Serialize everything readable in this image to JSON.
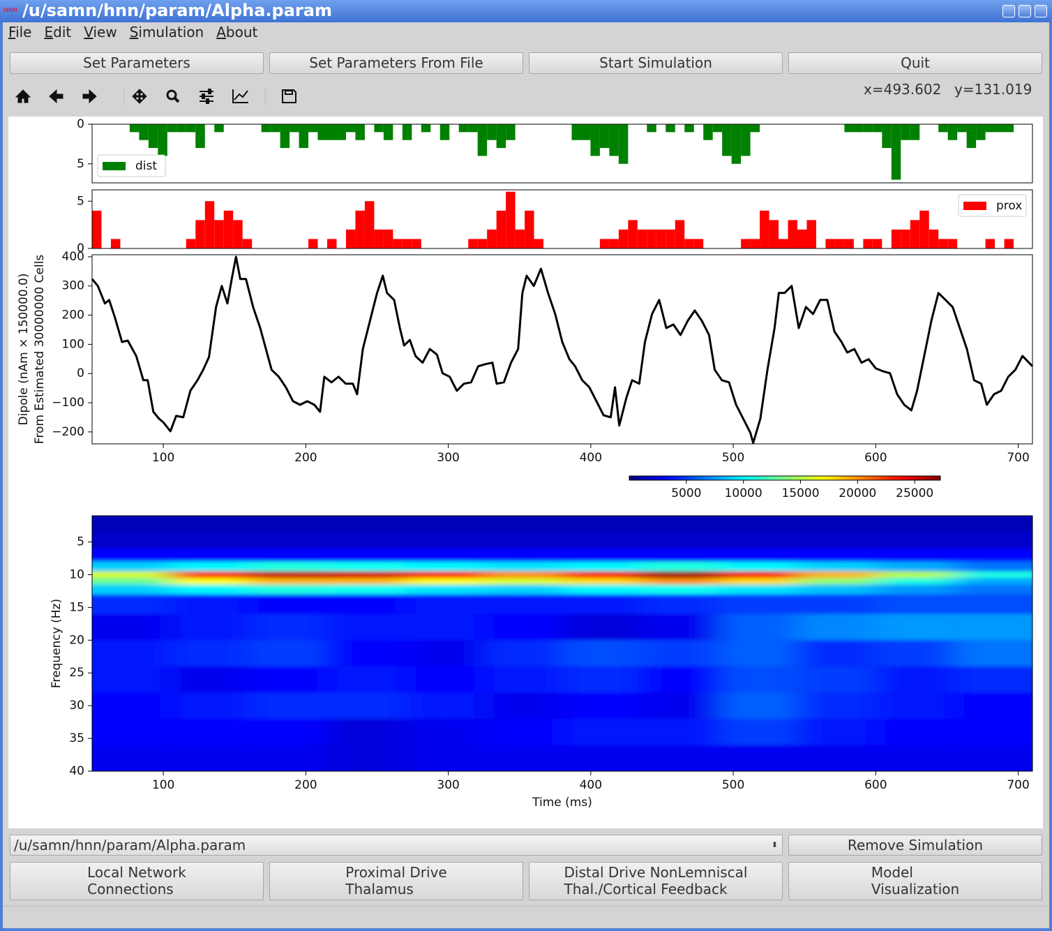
{
  "window": {
    "icon": "HNN",
    "title": "/u/samn/hnn/param/Alpha.param"
  },
  "menu": [
    "File",
    "Edit",
    "View",
    "Simulation",
    "About"
  ],
  "buttons": [
    "Set Parameters",
    "Set Parameters From File",
    "Start Simulation",
    "Quit"
  ],
  "toolbar": {
    "x_coord": "x=493.602",
    "y_coord": "y=131.019"
  },
  "bottom": {
    "file": "/u/samn/hnn/param/Alpha.param",
    "remove": "Remove Simulation",
    "dialogs": [
      [
        "Local Network",
        "Connections"
      ],
      [
        "Proximal Drive",
        "Thalamus"
      ],
      [
        "Distal Drive NonLemniscal",
        "Thal./Cortical Feedback"
      ],
      [
        "Model",
        "Visualization"
      ]
    ]
  },
  "chart_data": [
    {
      "type": "histogram",
      "legend": "lower left",
      "bins": [
        50,
        56.6,
        63.2,
        69.8,
        76.4,
        83,
        89.6,
        96.2,
        102.8,
        109.4,
        116,
        122.6,
        129.2,
        135.8,
        142.4,
        149,
        155.6,
        162.2,
        168.8,
        175.4,
        182,
        188.6,
        195.2,
        201.8,
        208.4,
        215,
        221.6,
        228.2,
        234.8,
        241.4,
        248,
        254.6,
        261.2,
        267.8,
        274.4,
        281,
        287.6,
        294.2,
        300.8,
        307.4,
        314,
        320.6,
        327.2,
        333.8,
        340.4,
        347,
        353.6,
        360.2,
        366.8,
        373.4,
        380,
        386.6,
        393.2,
        399.8,
        406.4,
        413,
        419.6,
        426.2,
        432.8,
        439.4,
        446,
        452.6,
        459.2,
        465.8,
        472.4,
        479,
        485.6,
        492.2,
        498.8,
        505.4,
        512,
        518.6,
        525.2,
        531.8,
        538.4,
        545,
        551.6,
        558.2,
        564.8,
        571.4,
        578,
        584.6,
        591.2,
        597.8,
        604.4,
        611,
        617.6,
        624.2,
        630.8,
        637.4,
        644,
        650.6,
        657.2,
        663.8,
        670.4,
        677,
        683.6,
        690.2,
        696.8,
        703.4,
        710
      ],
      "series": [
        {
          "name": "dist",
          "color": "#008000",
          "values": [
            0,
            0,
            0,
            0,
            1,
            2,
            3,
            4,
            1,
            1,
            1,
            3,
            0,
            1,
            0,
            0,
            0,
            0,
            1,
            1,
            3,
            1,
            3,
            1,
            2,
            2,
            2,
            1,
            2,
            0,
            1,
            2,
            0,
            2,
            0,
            1,
            0,
            2,
            0,
            1,
            1,
            4,
            2,
            3,
            2,
            0,
            0,
            0,
            0,
            0,
            0,
            2,
            2,
            4,
            3,
            4,
            5,
            0,
            0,
            1,
            0,
            1,
            0,
            1,
            0,
            2,
            1,
            4,
            5,
            4,
            1,
            0,
            0,
            0,
            0,
            0,
            0,
            0,
            0,
            0,
            1,
            1,
            1,
            1,
            3,
            7,
            2,
            2,
            0,
            0,
            1,
            2,
            1,
            3,
            2,
            1,
            1,
            1,
            0,
            0
          ]
        }
      ],
      "xlim": [
        50,
        710
      ],
      "ylim": [
        7.4,
        0
      ],
      "yticks": [
        0,
        5
      ]
    },
    {
      "type": "histogram",
      "legend": "upper right",
      "bins": [
        50,
        56.6,
        63.2,
        69.8,
        76.4,
        83,
        89.6,
        96.2,
        102.8,
        109.4,
        116,
        122.6,
        129.2,
        135.8,
        142.4,
        149,
        155.6,
        162.2,
        168.8,
        175.4,
        182,
        188.6,
        195.2,
        201.8,
        208.4,
        215,
        221.6,
        228.2,
        234.8,
        241.4,
        248,
        254.6,
        261.2,
        267.8,
        274.4,
        281,
        287.6,
        294.2,
        300.8,
        307.4,
        314,
        320.6,
        327.2,
        333.8,
        340.4,
        347,
        353.6,
        360.2,
        366.8,
        373.4,
        380,
        386.6,
        393.2,
        399.8,
        406.4,
        413,
        419.6,
        426.2,
        432.8,
        439.4,
        446,
        452.6,
        459.2,
        465.8,
        472.4,
        479,
        485.6,
        492.2,
        498.8,
        505.4,
        512,
        518.6,
        525.2,
        531.8,
        538.4,
        545,
        551.6,
        558.2,
        564.8,
        571.4,
        578,
        584.6,
        591.2,
        597.8,
        604.4,
        611,
        617.6,
        624.2,
        630.8,
        637.4,
        644,
        650.6,
        657.2,
        663.8,
        670.4,
        677,
        683.6,
        690.2,
        696.8,
        703.4,
        710
      ],
      "series": [
        {
          "name": "prox",
          "color": "#ff0000",
          "values": [
            4,
            0,
            1,
            0,
            0,
            0,
            0,
            0,
            0,
            0,
            1,
            3,
            5,
            3,
            4,
            3,
            1,
            0,
            0,
            0,
            0,
            0,
            0,
            1,
            0,
            1,
            0,
            2,
            4,
            5,
            2,
            2,
            1,
            1,
            1,
            0,
            0,
            0,
            0,
            0,
            1,
            1,
            2,
            4,
            6,
            2,
            4,
            1,
            0,
            0,
            0,
            0,
            0,
            0,
            1,
            1,
            2,
            3,
            2,
            2,
            2,
            2,
            3,
            1,
            1,
            0,
            0,
            0,
            0,
            1,
            1,
            4,
            3,
            1,
            3,
            2,
            3,
            0,
            1,
            1,
            1,
            0,
            1,
            1,
            0,
            2,
            2,
            3,
            4,
            2,
            1,
            1,
            0,
            0,
            0,
            1,
            0,
            1,
            0,
            0
          ]
        }
      ],
      "xlim": [
        50,
        710
      ],
      "ylim": [
        0,
        6.2
      ],
      "yticks": [
        0,
        5
      ]
    },
    {
      "type": "line",
      "ylabel": [
        "Dipole (nAm × 150000.0)",
        "From Estimated 30000000 Cells"
      ],
      "x": [
        50,
        54,
        59,
        62,
        66,
        71,
        75,
        81,
        86,
        89,
        93,
        97,
        100,
        105,
        109,
        114,
        119,
        124,
        128,
        132,
        137,
        141,
        145,
        148,
        151,
        154,
        158,
        163,
        168,
        172,
        176,
        181,
        186,
        191,
        196,
        201,
        206,
        210,
        213,
        218,
        223,
        228,
        233,
        236,
        240,
        245,
        250,
        254,
        257,
        262,
        266,
        269,
        273,
        277,
        282,
        287,
        292,
        296,
        301,
        306,
        311,
        316,
        321,
        326,
        331,
        334,
        339,
        344,
        349,
        352,
        355,
        360,
        365,
        370,
        375,
        380,
        385,
        389,
        394,
        399,
        404,
        409,
        414,
        417,
        420,
        425,
        429,
        434,
        438,
        443,
        448,
        453,
        458,
        463,
        468,
        473,
        478,
        483,
        487,
        492,
        497,
        502,
        507,
        512,
        514,
        519,
        524,
        529,
        532,
        536,
        541,
        546,
        551,
        556,
        561,
        566,
        571,
        576,
        580,
        585,
        590,
        595,
        600,
        605,
        610,
        615,
        620,
        625,
        629,
        634,
        639,
        644,
        649,
        654,
        659,
        664,
        669,
        674,
        678,
        683,
        688,
        693,
        698,
        703,
        710
      ],
      "series": [
        {
          "color": "#000000",
          "values": [
            324,
            300,
            240,
            252,
            192,
            108,
            113,
            60,
            -23,
            -23,
            -131,
            -155,
            -167,
            -198,
            -145,
            -150,
            -59,
            -23,
            13,
            56,
            228,
            300,
            240,
            324,
            400,
            324,
            324,
            228,
            156,
            84,
            13,
            -11,
            -47,
            -95,
            -107,
            -95,
            -107,
            -131,
            -11,
            -30,
            -11,
            -35,
            -35,
            -71,
            84,
            180,
            276,
            335,
            276,
            252,
            156,
            96,
            115,
            60,
            37,
            84,
            65,
            1,
            -11,
            -59,
            -35,
            -30,
            25,
            32,
            37,
            -35,
            -30,
            37,
            84,
            276,
            335,
            300,
            359,
            276,
            204,
            108,
            49,
            25,
            -23,
            -47,
            -95,
            -143,
            -150,
            -47,
            -178,
            -83,
            -23,
            -35,
            108,
            204,
            252,
            156,
            168,
            132,
            180,
            216,
            180,
            132,
            13,
            -23,
            -30,
            -107,
            -155,
            -203,
            -238,
            -155,
            13,
            156,
            276,
            276,
            300,
            156,
            228,
            204,
            252,
            252,
            144,
            108,
            72,
            84,
            37,
            49,
            18,
            8,
            1,
            -71,
            -107,
            -126,
            -59,
            60,
            180,
            276,
            252,
            228,
            156,
            84,
            -23,
            -35,
            -107,
            -71,
            -59,
            -11,
            13,
            60,
            25
          ]
        }
      ],
      "xlim": [
        50,
        710
      ],
      "xticks": [
        100,
        200,
        300,
        400,
        500,
        600,
        700
      ],
      "ylim": [
        -241,
        407
      ],
      "yticks": [
        {
          "value": -200,
          "label": "−200"
        },
        {
          "value": -100,
          "label": "−100"
        },
        0,
        100,
        200,
        300,
        400
      ]
    },
    {
      "type": "heatmap",
      "xlabel": "Time (ms)",
      "ylabel": "Frequency (Hz)",
      "cmap": "jet",
      "x": [
        77.5,
        132.5,
        187.5,
        242.5,
        297.5,
        352.5,
        407.5,
        462.5,
        517.5,
        572.5,
        627.5,
        682.5
      ],
      "y": [
        2,
        5,
        7,
        9,
        10,
        11,
        12,
        14,
        18,
        22,
        26,
        30,
        34,
        38
      ],
      "z": [
        [
          1500,
          1500,
          1500,
          1500,
          1500,
          1500,
          1500,
          1500,
          1500,
          1500,
          1500,
          1500
        ],
        [
          2000,
          2000,
          2000,
          2000,
          2000,
          2000,
          2000,
          2000,
          2000,
          2000,
          2000,
          2000
        ],
        [
          3500,
          3500,
          3500,
          3500,
          3500,
          3500,
          3500,
          3500,
          3500,
          3500,
          3500,
          3500
        ],
        [
          9000,
          10000,
          11000,
          10500,
          10000,
          9500,
          10000,
          11000,
          10000,
          9000,
          8000,
          6500
        ],
        [
          16000,
          23000,
          25500,
          25000,
          23500,
          20000,
          24000,
          26500,
          24000,
          19000,
          15000,
          11000
        ],
        [
          13000,
          17000,
          19000,
          19000,
          17000,
          16000,
          18000,
          20000,
          18000,
          14000,
          11000,
          8000
        ],
        [
          9000,
          10000,
          11000,
          10500,
          9500,
          9000,
          10000,
          10500,
          9500,
          8500,
          7500,
          6500
        ],
        [
          4500,
          4000,
          3500,
          3500,
          4000,
          4000,
          4000,
          4500,
          5000,
          5000,
          5500,
          5500
        ],
        [
          3000,
          4000,
          4500,
          4000,
          4000,
          3500,
          2500,
          3000,
          6000,
          7000,
          7500,
          7500
        ],
        [
          4000,
          4500,
          5000,
          3500,
          3000,
          4500,
          5500,
          5000,
          6000,
          4500,
          5000,
          6500
        ],
        [
          4000,
          3000,
          3500,
          4000,
          3500,
          4000,
          4500,
          3500,
          5500,
          5000,
          4000,
          4500
        ],
        [
          3500,
          4000,
          4500,
          4500,
          4000,
          3000,
          3500,
          3000,
          6000,
          4500,
          4000,
          3500
        ],
        [
          3500,
          3500,
          3500,
          2500,
          3000,
          3500,
          4000,
          4000,
          5000,
          4000,
          3500,
          3500
        ],
        [
          3000,
          3000,
          3000,
          2500,
          3000,
          3000,
          3000,
          3000,
          3000,
          3000,
          3000,
          3000
        ]
      ],
      "xlim": [
        50,
        710
      ],
      "xticks": [
        100,
        200,
        300,
        400,
        500,
        600,
        700
      ],
      "ylim": [
        40,
        1
      ],
      "yticks": [
        5,
        10,
        15,
        20,
        25,
        30,
        35,
        40
      ],
      "zlim": [
        0,
        27250
      ],
      "cticks": [
        5000,
        10000,
        15000,
        20000,
        25000
      ]
    }
  ]
}
